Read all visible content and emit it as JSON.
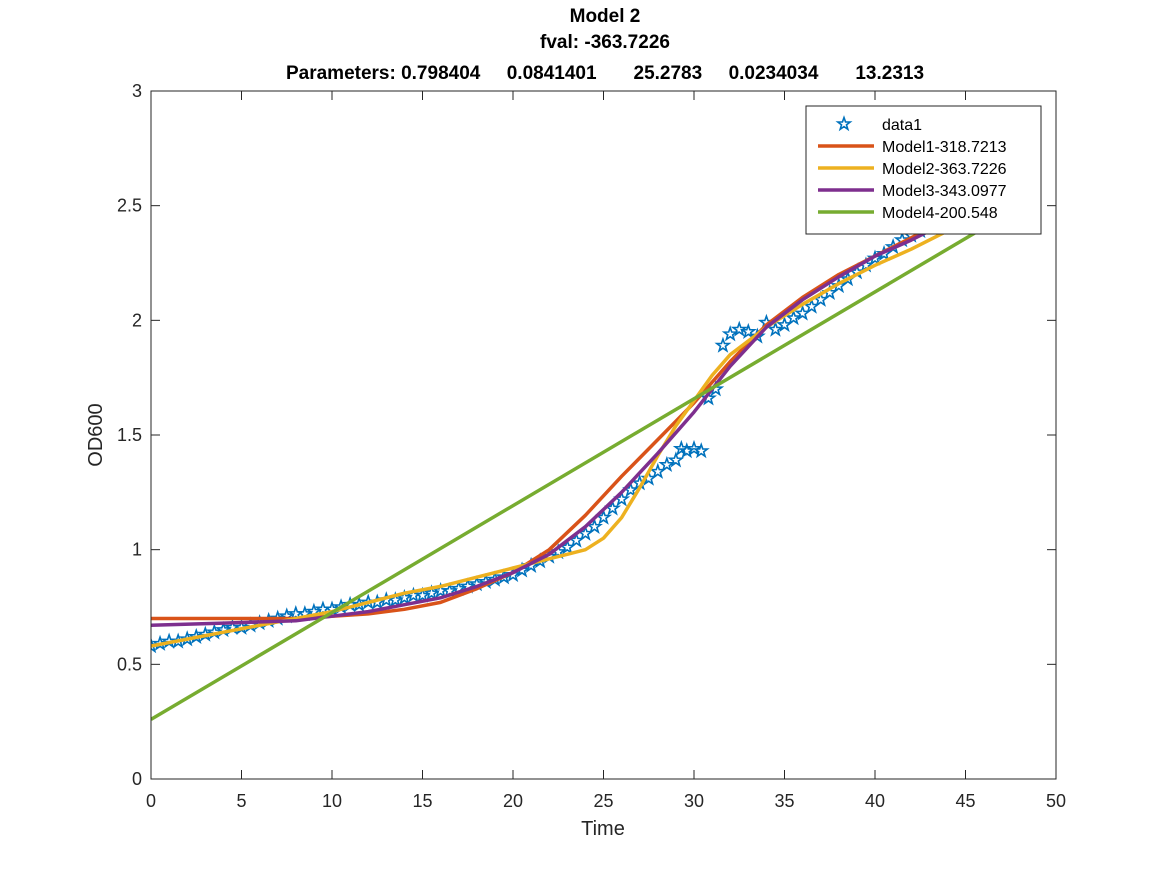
{
  "chart_data": {
    "type": "line",
    "title_lines": [
      "Model 2",
      "fval: -363.7226",
      "Parameters: 0.798404     0.0841401       25.2783     0.0234034       13.2313"
    ],
    "xlabel": "Time",
    "ylabel": "OD600",
    "xlim": [
      0,
      50
    ],
    "ylim": [
      0,
      3
    ],
    "xticks": [
      0,
      5,
      10,
      15,
      20,
      25,
      30,
      35,
      40,
      45,
      50
    ],
    "yticks": [
      0,
      0.5,
      1,
      1.5,
      2,
      2.5,
      3
    ],
    "xtick_labels": [
      "0",
      "5",
      "10",
      "15",
      "20",
      "25",
      "30",
      "35",
      "40",
      "45",
      "50"
    ],
    "ytick_labels": [
      "0",
      "0.5",
      "1",
      "1.5",
      "2",
      "2.5",
      "3"
    ],
    "grid": false,
    "legend_position": "top-right",
    "series": [
      {
        "name": "data1",
        "style": "markers",
        "marker": "pentagram",
        "color": "#0072BD",
        "points": [
          [
            0.0,
            0.58
          ],
          [
            0.5,
            0.59
          ],
          [
            1.0,
            0.6
          ],
          [
            1.5,
            0.6
          ],
          [
            2.0,
            0.61
          ],
          [
            2.5,
            0.62
          ],
          [
            3.0,
            0.63
          ],
          [
            3.5,
            0.64
          ],
          [
            4.0,
            0.65
          ],
          [
            4.5,
            0.66
          ],
          [
            5.0,
            0.66
          ],
          [
            5.5,
            0.67
          ],
          [
            6.0,
            0.68
          ],
          [
            6.5,
            0.69
          ],
          [
            7.0,
            0.7
          ],
          [
            7.5,
            0.71
          ],
          [
            8.0,
            0.72
          ],
          [
            8.5,
            0.72
          ],
          [
            9.0,
            0.73
          ],
          [
            9.5,
            0.74
          ],
          [
            10.0,
            0.74
          ],
          [
            10.5,
            0.75
          ],
          [
            11.0,
            0.76
          ],
          [
            11.5,
            0.76
          ],
          [
            12.0,
            0.77
          ],
          [
            12.5,
            0.77
          ],
          [
            13.0,
            0.78
          ],
          [
            13.5,
            0.78
          ],
          [
            14.0,
            0.79
          ],
          [
            14.5,
            0.8
          ],
          [
            15.0,
            0.8
          ],
          [
            15.5,
            0.81
          ],
          [
            16.0,
            0.82
          ],
          [
            16.5,
            0.82
          ],
          [
            17.0,
            0.83
          ],
          [
            17.5,
            0.84
          ],
          [
            18.0,
            0.85
          ],
          [
            18.5,
            0.86
          ],
          [
            19.0,
            0.87
          ],
          [
            19.5,
            0.88
          ],
          [
            20.0,
            0.89
          ],
          [
            20.5,
            0.91
          ],
          [
            21.0,
            0.93
          ],
          [
            21.5,
            0.95
          ],
          [
            22.0,
            0.97
          ],
          [
            22.5,
            0.99
          ],
          [
            23.0,
            1.01
          ],
          [
            23.5,
            1.04
          ],
          [
            24.0,
            1.07
          ],
          [
            24.5,
            1.1
          ],
          [
            25.0,
            1.14
          ],
          [
            25.5,
            1.18
          ],
          [
            26.0,
            1.22
          ],
          [
            26.5,
            1.26
          ],
          [
            27.0,
            1.29
          ],
          [
            27.5,
            1.31
          ],
          [
            28.0,
            1.34
          ],
          [
            28.5,
            1.37
          ],
          [
            29.0,
            1.39
          ],
          [
            29.3,
            1.44
          ],
          [
            29.6,
            1.43
          ],
          [
            30.0,
            1.44
          ],
          [
            30.4,
            1.43
          ],
          [
            30.8,
            1.66
          ],
          [
            31.2,
            1.7
          ],
          [
            31.6,
            1.89
          ],
          [
            32.0,
            1.94
          ],
          [
            32.5,
            1.96
          ],
          [
            33.0,
            1.95
          ],
          [
            33.5,
            1.93
          ],
          [
            34.0,
            1.99
          ],
          [
            34.5,
            1.96
          ],
          [
            35.0,
            1.98
          ],
          [
            35.5,
            2.01
          ],
          [
            36.0,
            2.03
          ],
          [
            36.5,
            2.06
          ],
          [
            37.0,
            2.09
          ],
          [
            37.5,
            2.12
          ],
          [
            38.0,
            2.15
          ],
          [
            38.5,
            2.18
          ],
          [
            39.0,
            2.21
          ],
          [
            39.5,
            2.24
          ],
          [
            40.0,
            2.27
          ],
          [
            40.5,
            2.29
          ],
          [
            41.0,
            2.32
          ],
          [
            41.5,
            2.35
          ],
          [
            42.0,
            2.37
          ],
          [
            42.5,
            2.39
          ]
        ]
      },
      {
        "name": "Model1-318.7213",
        "style": "line",
        "color": "#D95319",
        "points": [
          [
            0,
            0.7
          ],
          [
            5,
            0.7
          ],
          [
            8,
            0.7
          ],
          [
            10,
            0.71
          ],
          [
            12,
            0.72
          ],
          [
            14,
            0.74
          ],
          [
            16,
            0.77
          ],
          [
            18,
            0.83
          ],
          [
            20,
            0.9
          ],
          [
            22,
            1.0
          ],
          [
            24,
            1.15
          ],
          [
            26,
            1.32
          ],
          [
            28,
            1.48
          ],
          [
            30,
            1.64
          ],
          [
            32,
            1.82
          ],
          [
            34,
            1.98
          ],
          [
            36,
            2.1
          ],
          [
            38,
            2.2
          ],
          [
            40,
            2.28
          ],
          [
            42,
            2.36
          ],
          [
            44,
            2.44
          ]
        ]
      },
      {
        "name": "Model2-363.7226",
        "style": "line",
        "color": "#EDB120",
        "points": [
          [
            0,
            0.58
          ],
          [
            2,
            0.61
          ],
          [
            4,
            0.64
          ],
          [
            6,
            0.67
          ],
          [
            8,
            0.7
          ],
          [
            10,
            0.73
          ],
          [
            12,
            0.77
          ],
          [
            14,
            0.81
          ],
          [
            16,
            0.84
          ],
          [
            18,
            0.88
          ],
          [
            20,
            0.92
          ],
          [
            21,
            0.94
          ],
          [
            22,
            0.96
          ],
          [
            23,
            0.98
          ],
          [
            24,
            1.0
          ],
          [
            25,
            1.05
          ],
          [
            26,
            1.14
          ],
          [
            27,
            1.27
          ],
          [
            28,
            1.41
          ],
          [
            29,
            1.54
          ],
          [
            30,
            1.65
          ],
          [
            31,
            1.76
          ],
          [
            32,
            1.85
          ],
          [
            34,
            1.97
          ],
          [
            36,
            2.07
          ],
          [
            38,
            2.16
          ],
          [
            40,
            2.24
          ],
          [
            42,
            2.31
          ],
          [
            44,
            2.39
          ]
        ]
      },
      {
        "name": "Model3-343.0977",
        "style": "line",
        "color": "#7E2F8E",
        "points": [
          [
            0,
            0.67
          ],
          [
            4,
            0.68
          ],
          [
            8,
            0.69
          ],
          [
            10,
            0.71
          ],
          [
            12,
            0.73
          ],
          [
            14,
            0.76
          ],
          [
            16,
            0.79
          ],
          [
            18,
            0.84
          ],
          [
            20,
            0.9
          ],
          [
            22,
            0.98
          ],
          [
            24,
            1.1
          ],
          [
            26,
            1.25
          ],
          [
            28,
            1.42
          ],
          [
            30,
            1.6
          ],
          [
            32,
            1.8
          ],
          [
            34,
            1.97
          ],
          [
            36,
            2.09
          ],
          [
            38,
            2.19
          ],
          [
            40,
            2.28
          ],
          [
            42,
            2.35
          ],
          [
            44,
            2.43
          ]
        ]
      },
      {
        "name": "Model4-200.548",
        "style": "line",
        "color": "#77AC30",
        "points": [
          [
            0,
            0.26
          ],
          [
            47,
            2.45
          ]
        ]
      }
    ]
  }
}
